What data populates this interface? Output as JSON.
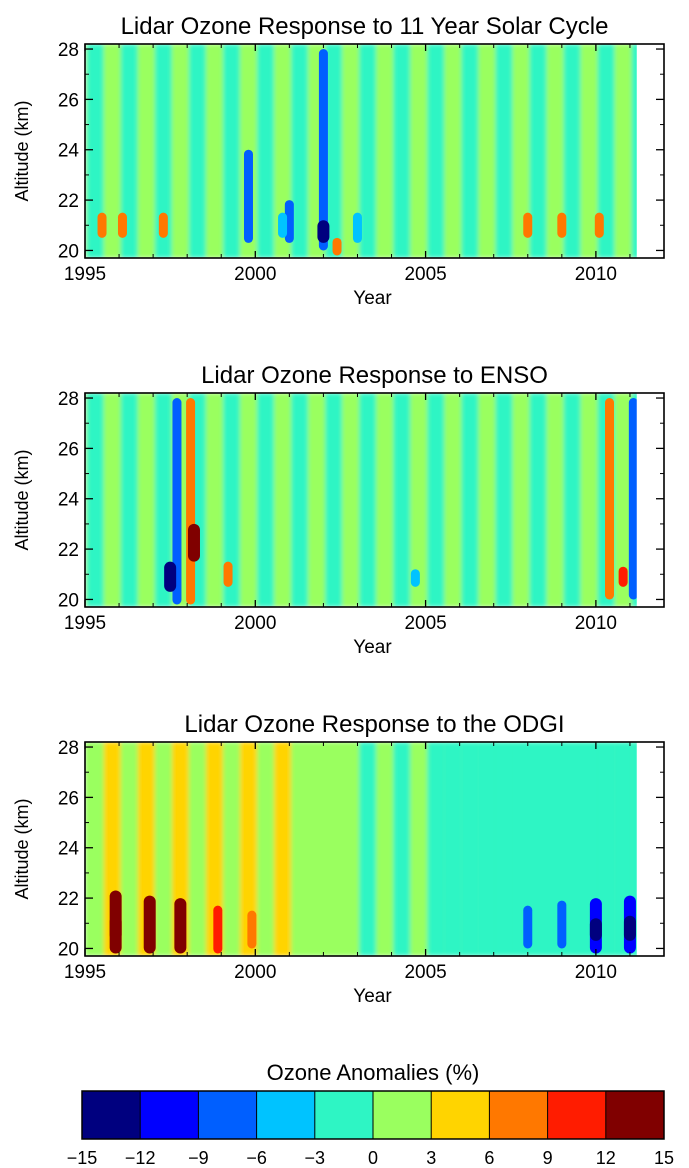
{
  "colors": {
    "bins": [
      "#00007f",
      "#0000ff",
      "#005fff",
      "#00c3ff",
      "#2ef5c4",
      "#9aff5f",
      "#ffd400",
      "#ff7800",
      "#ff1c00",
      "#800000"
    ]
  },
  "chart_data": [
    {
      "type": "heatmap",
      "title": "Lidar Ozone Response to 11 Year Solar Cycle",
      "xlabel": "Year",
      "ylabel": "Altitude (km)",
      "xlim": [
        1995,
        2012
      ],
      "ylim": [
        19.7,
        28.2
      ],
      "xticks": [
        1995,
        2000,
        2005,
        2010
      ],
      "yticks": [
        20,
        22,
        24,
        26,
        28
      ],
      "data_end": 2011.2,
      "baseline": "alternating green/cyan bands (about 0 to ±3%) with roughly 1-year period across all altitudes",
      "features": [
        {
          "x": 2002.0,
          "y": [
            20,
            28
          ],
          "value": -9
        },
        {
          "x": 2002.0,
          "y": [
            20.3,
            21.2
          ],
          "value": -15
        },
        {
          "x": 2001.0,
          "y": [
            20.3,
            22
          ],
          "value": -9
        },
        {
          "x": 1999.8,
          "y": [
            20.3,
            24
          ],
          "value": -9
        },
        {
          "x": 2000.8,
          "y": [
            20.5,
            21.5
          ],
          "value": -6
        },
        {
          "x": 2003.0,
          "y": [
            20.3,
            21.5
          ],
          "value": -6
        },
        {
          "x": 1995.5,
          "y": [
            20.5,
            21.5
          ],
          "value": 6
        },
        {
          "x": 1996.1,
          "y": [
            20.5,
            21.5
          ],
          "value": 6
        },
        {
          "x": 1997.3,
          "y": [
            20.5,
            21.5
          ],
          "value": 6
        },
        {
          "x": 2002.4,
          "y": [
            19.8,
            20.5
          ],
          "value": 6
        },
        {
          "x": 2008.0,
          "y": [
            20.5,
            21.5
          ],
          "value": 6
        },
        {
          "x": 2009.0,
          "y": [
            20.5,
            21.5
          ],
          "value": 6
        },
        {
          "x": 2010.1,
          "y": [
            20.5,
            21.5
          ],
          "value": 6
        }
      ]
    },
    {
      "type": "heatmap",
      "title": "Lidar Ozone Response to ENSO",
      "xlabel": "Year",
      "ylabel": "Altitude (km)",
      "xlim": [
        1995,
        2012
      ],
      "ylim": [
        19.7,
        28.2
      ],
      "xticks": [
        1995,
        2000,
        2005,
        2010
      ],
      "yticks": [
        20,
        22,
        24,
        26,
        28
      ],
      "data_end": 2011.2,
      "baseline": "alternating green/cyan bands (about 0 to ±3%) with roughly 1-year period across all altitudes",
      "features": [
        {
          "x": 1997.7,
          "y": [
            19.8,
            28
          ],
          "value": -9
        },
        {
          "x": 1997.5,
          "y": [
            20.3,
            21.5
          ],
          "value": -15
        },
        {
          "x": 1998.1,
          "y": [
            19.8,
            28
          ],
          "value": 6
        },
        {
          "x": 1998.2,
          "y": [
            21.5,
            23
          ],
          "value": 12
        },
        {
          "x": 1999.2,
          "y": [
            20.5,
            21.5
          ],
          "value": 6
        },
        {
          "x": 2010.4,
          "y": [
            20,
            28
          ],
          "value": 6
        },
        {
          "x": 2010.8,
          "y": [
            20.5,
            21.3
          ],
          "value": 9
        },
        {
          "x": 2011.1,
          "y": [
            20,
            28
          ],
          "value": -9
        },
        {
          "x": 2004.7,
          "y": [
            20.5,
            21.2
          ],
          "value": -6
        }
      ]
    },
    {
      "type": "heatmap",
      "title": "Lidar Ozone Response to the ODGI",
      "xlabel": "Year",
      "ylabel": "Altitude (km)",
      "xlim": [
        1995,
        2012
      ],
      "ylim": [
        19.7,
        28.2
      ],
      "xticks": [
        1995,
        2000,
        2005,
        2010
      ],
      "yticks": [
        20,
        22,
        24,
        26,
        28
      ],
      "data_end": 2011.2,
      "baseline": "early years slightly positive (green/yellow), late years slightly negative (cyan)",
      "features": [
        {
          "x": 1995.9,
          "y": [
            19.8,
            22.3
          ],
          "value": 12
        },
        {
          "x": 1995.9,
          "y": [
            20.3,
            21.3
          ],
          "value": 15
        },
        {
          "x": 1996.9,
          "y": [
            19.8,
            22.1
          ],
          "value": 12
        },
        {
          "x": 1997.8,
          "y": [
            19.8,
            22
          ],
          "value": 12
        },
        {
          "x": 1998.9,
          "y": [
            19.8,
            21.7
          ],
          "value": 9
        },
        {
          "x": 1999.9,
          "y": [
            20,
            21.5
          ],
          "value": 6
        },
        {
          "x": 2008.0,
          "y": [
            20,
            21.7
          ],
          "value": -9
        },
        {
          "x": 2009.0,
          "y": [
            20,
            21.9
          ],
          "value": -9
        },
        {
          "x": 2010.0,
          "y": [
            19.8,
            22
          ],
          "value": -12
        },
        {
          "x": 2010.0,
          "y": [
            20.3,
            21.2
          ],
          "value": -15
        },
        {
          "x": 2011.0,
          "y": [
            19.8,
            22.1
          ],
          "value": -12
        },
        {
          "x": 2011.0,
          "y": [
            20.3,
            21.3
          ],
          "value": -15
        }
      ]
    }
  ],
  "colorbar": {
    "title": "Ozone Anomalies (%)",
    "ticks": [
      -15,
      -12,
      -9,
      -6,
      -3,
      0,
      3,
      6,
      9,
      12,
      15
    ]
  }
}
